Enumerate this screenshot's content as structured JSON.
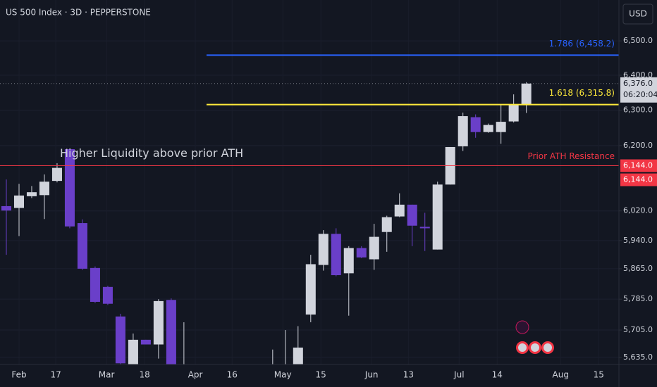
{
  "chart_data": {
    "type": "candlestick",
    "title": "US 500 Index · 3D · PEPPERSTONE",
    "currency": "USD",
    "log_scale": true,
    "grid": true,
    "up_color": "#d1d4dc",
    "down_color": "#6a3fc9",
    "x": [
      0,
      1,
      2,
      3,
      4,
      5,
      6,
      7,
      8,
      9,
      10,
      11,
      12,
      13,
      14,
      21,
      22,
      23,
      24,
      25,
      26,
      27,
      28,
      29,
      30,
      31,
      32,
      33,
      34,
      35,
      36,
      37,
      38,
      39,
      40,
      41
    ],
    "open": [
      6033,
      6028,
      6060,
      6063,
      6102,
      6190,
      5987,
      5867,
      5817,
      5740,
      5617,
      5680,
      5668,
      5783,
      5560,
      5590,
      5600,
      5610,
      5745,
      5875,
      5958,
      5853,
      5920,
      5890,
      5963,
      6005,
      6037,
      5977,
      5916,
      6092,
      6198,
      6280,
      6238,
      6238,
      6268,
      6315
    ],
    "high": [
      6106,
      6094,
      6088,
      6120,
      6151,
      6190,
      5997,
      5871,
      5820,
      5747,
      5696,
      5680,
      5785,
      5787,
      5725,
      5655,
      5705,
      5715,
      5902,
      5968,
      5973,
      5925,
      5925,
      5985,
      6007,
      6068,
      6037,
      6015,
      6100,
      6196,
      6293,
      6288,
      6262,
      6315,
      6345,
      6380
    ],
    "low": [
      5902,
      5952,
      6055,
      5998,
      6098,
      5973,
      5862,
      5775,
      5770,
      5600,
      5600,
      5668,
      5632,
      5580,
      5520,
      5580,
      5590,
      5590,
      5725,
      5860,
      5845,
      5742,
      5893,
      5862,
      5910,
      6003,
      5925,
      5912,
      5916,
      6092,
      6185,
      6222,
      6236,
      6205,
      6265,
      6292
    ],
    "close": [
      6021,
      6062,
      6071,
      6100,
      6138,
      5978,
      5865,
      5778,
      5773,
      5620,
      5680,
      5668,
      5780,
      5600,
      5590,
      5610,
      5615,
      5660,
      5877,
      5958,
      5848,
      5920,
      5895,
      5950,
      6003,
      6037,
      5980,
      5973,
      6092,
      6196,
      6283,
      6238,
      6258,
      6267,
      6315,
      6376
    ],
    "xlim": [
      -0.5,
      48.3
    ],
    "xticks": [
      {
        "value": 1,
        "label": "Feb"
      },
      {
        "value": 3.9,
        "label": "17"
      },
      {
        "value": 7.9,
        "label": "Mar"
      },
      {
        "value": 10.9,
        "label": "18"
      },
      {
        "value": 14.9,
        "label": "Apr"
      },
      {
        "value": 17.8,
        "label": "16"
      },
      {
        "value": 21.8,
        "label": "May"
      },
      {
        "value": 24.8,
        "label": "15"
      },
      {
        "value": 28.8,
        "label": "Jun"
      },
      {
        "value": 31.7,
        "label": "13"
      },
      {
        "value": 35.7,
        "label": "Jul"
      },
      {
        "value": 38.7,
        "label": "14"
      },
      {
        "value": 43.7,
        "label": "Aug"
      },
      {
        "value": 46.7,
        "label": "15"
      }
    ],
    "ylim": [
      5617,
      6621
    ],
    "yticks": [
      {
        "value": 5635,
        "label": "5,635.0"
      },
      {
        "value": 5705,
        "label": "5,705.0"
      },
      {
        "value": 5785,
        "label": "5,785.0"
      },
      {
        "value": 5865,
        "label": "5,865.0"
      },
      {
        "value": 5940,
        "label": "5,940.0"
      },
      {
        "value": 6020,
        "label": "6,020.0"
      },
      {
        "value": 6200,
        "label": "6,200.0"
      },
      {
        "value": 6300,
        "label": "6,300.0"
      },
      {
        "value": 6400,
        "label": "6,400.0"
      },
      {
        "value": 6500,
        "label": "6,500.0"
      }
    ],
    "levels": [
      {
        "value": 6458.2,
        "label": "1.786 (6,458.2)",
        "color": "#2962ff"
      },
      {
        "value": 6315.8,
        "label": "1.618 (6,315.8)",
        "color": "#ffeb3b"
      },
      {
        "value": 6144,
        "label": "Prior ATH Resistance",
        "tag": "6,144.0",
        "color": "#f23645"
      }
    ],
    "annotation": "Higher Liquidity above prior ATH",
    "last_price": {
      "value": 6376,
      "label": "6,376.0",
      "countdown": "06:20:04"
    }
  }
}
